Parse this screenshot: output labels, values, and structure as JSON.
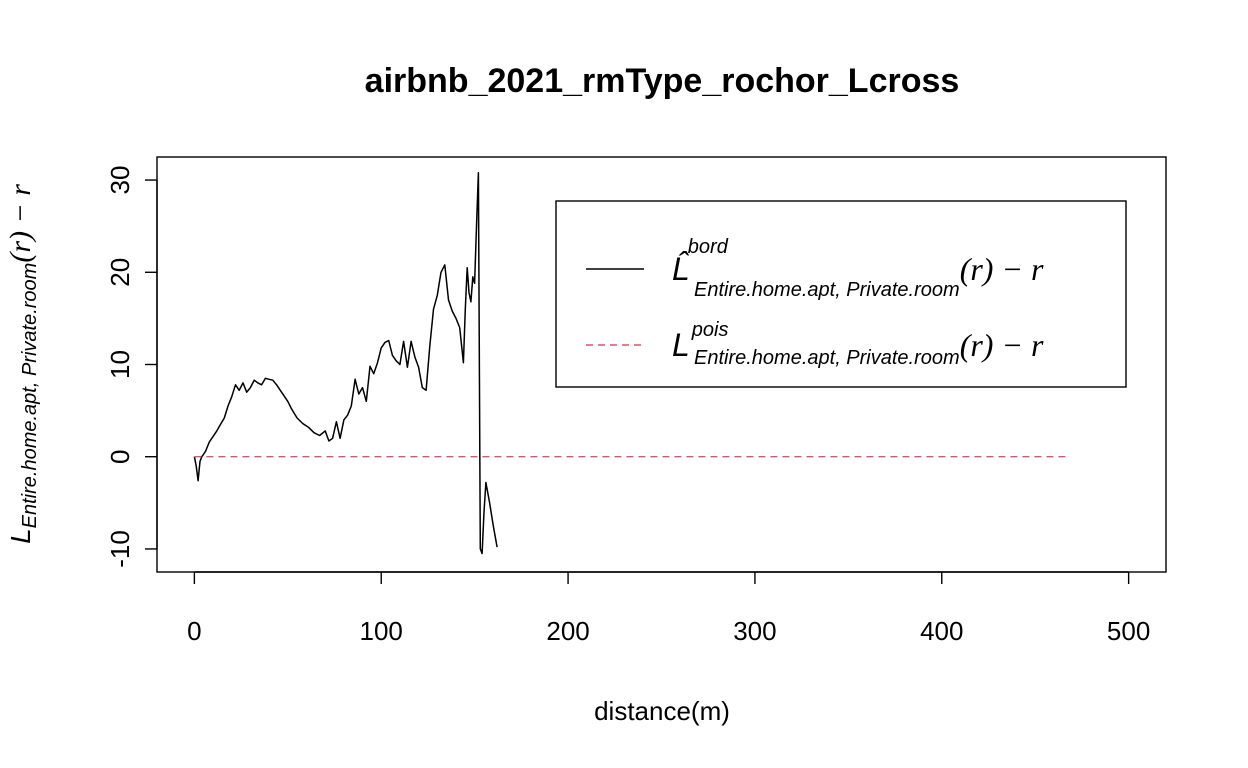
{
  "chart_data": {
    "type": "line",
    "title": "airbnb_2021_rmType_rochor_Lcross",
    "xlabel": "distance(m)",
    "ylabel": {
      "main": "L",
      "sub": "Entire.home.apt, Private.room",
      "tail": "(r) − r"
    },
    "xlim": [
      -20,
      520
    ],
    "ylim": [
      -12.5,
      32.5
    ],
    "x_ticks": [
      0,
      100,
      200,
      300,
      400,
      500
    ],
    "x_tick_labels": [
      "0",
      "100",
      "200",
      "300",
      "400",
      "500"
    ],
    "y_ticks": [
      -10,
      0,
      10,
      20,
      30
    ],
    "y_tick_labels": [
      "-10",
      "0",
      "10",
      "20",
      "30"
    ],
    "grid": false,
    "legend_position": "top-right",
    "legend": [
      {
        "series": "bord",
        "main": "L̂",
        "sup": "bord",
        "sub": "Entire.home.apt, Private.room",
        "tail": "(r) − r",
        "color": "#000000",
        "dash": "solid"
      },
      {
        "series": "pois",
        "main": "L",
        "sup": "pois",
        "sub": "Entire.home.apt, Private.room",
        "tail": "(r) − r",
        "color": "#DF536B",
        "dash": "dashed"
      }
    ],
    "series": [
      {
        "name": "bord",
        "color": "#000000",
        "dash": "solid",
        "x": [
          0,
          1,
          2,
          3,
          4,
          5,
          6,
          8,
          10,
          12,
          14,
          16,
          18,
          20,
          22,
          24,
          26,
          28,
          30,
          32,
          34,
          36,
          38,
          40,
          42,
          44,
          46,
          48,
          50,
          52,
          55,
          58,
          61,
          64,
          67,
          70,
          72,
          74,
          76,
          78,
          80,
          82,
          84,
          86,
          88,
          90,
          92,
          94,
          96,
          98,
          100,
          102,
          104,
          106,
          108,
          110,
          112,
          114,
          116,
          118,
          120,
          122,
          124,
          126,
          128,
          130,
          132,
          134,
          136,
          138,
          140,
          142,
          144,
          145,
          146,
          147,
          148,
          149,
          150,
          151,
          152,
          153,
          154,
          155,
          156,
          158,
          160,
          162
        ],
        "y": [
          0,
          -1,
          -2.6,
          -0.5,
          0,
          0.3,
          0.6,
          1.6,
          2.2,
          2.8,
          3.5,
          4.2,
          5.5,
          6.5,
          7.8,
          7.2,
          8,
          7,
          7.5,
          8.3,
          8,
          7.8,
          8.5,
          8.4,
          8.3,
          7.8,
          7.2,
          6.6,
          6,
          5.2,
          4.2,
          3.6,
          3.2,
          2.6,
          2.3,
          2.8,
          1.7,
          2,
          3.8,
          2,
          4,
          4.5,
          5.5,
          8.4,
          6.8,
          7.5,
          6,
          9.8,
          9,
          10.2,
          11.8,
          12.4,
          12.6,
          11,
          10.4,
          10,
          12.5,
          9.7,
          12.5,
          10.8,
          9.7,
          7.5,
          7.2,
          12,
          16,
          17.5,
          20,
          20.8,
          17,
          15.8,
          15,
          14,
          10.2,
          16,
          20.5,
          17.8,
          16.8,
          19.5,
          18.8,
          25,
          30.8,
          -10,
          -10.5,
          -6,
          -2.8,
          -5,
          -7.5,
          -9.8
        ]
      },
      {
        "name": "pois",
        "color": "#DF536B",
        "dash": "dashed",
        "x": [
          0,
          468
        ],
        "y": [
          0,
          0
        ]
      }
    ]
  }
}
